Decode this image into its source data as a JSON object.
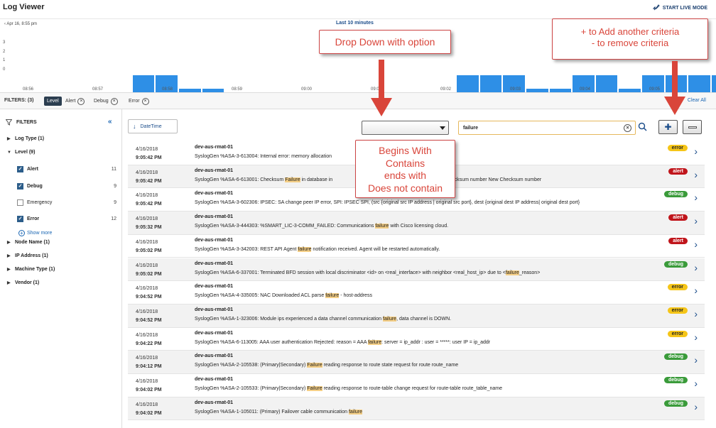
{
  "app": {
    "title": "Log Viewer",
    "live_mode": "START LIVE MODE"
  },
  "histogram": {
    "date_label": "Apr 16, 8:55 pm",
    "range_label": "Last 10 minutes",
    "y_ticks": [
      "3",
      "2",
      "1",
      "0"
    ],
    "x_ticks": [
      "08:56",
      "08:57",
      "08:58",
      "08:59",
      "09:00",
      "09:01",
      "09:02",
      "09:03",
      "09:04",
      "09:05"
    ],
    "bar_color": "#2e8fe6",
    "bars": [
      0,
      0,
      0,
      2,
      2,
      1,
      1,
      0,
      0,
      0,
      0,
      0,
      0,
      0,
      0,
      0,
      0,
      2,
      2,
      2,
      1,
      1,
      2,
      2,
      1,
      2,
      2,
      2,
      2,
      2,
      1
    ]
  },
  "filters_bar": {
    "label": "FILTERS: (3)",
    "chips": [
      {
        "label": "Level",
        "kind": "level"
      },
      {
        "label": "Alert"
      },
      {
        "label": "Debug"
      },
      {
        "label": "Error"
      }
    ],
    "clear_all": "Clear All"
  },
  "sidebar": {
    "title": "FILTERS",
    "collapse_icon": "«",
    "groups": [
      {
        "label": "Log Type (1)",
        "expanded": false
      },
      {
        "label": "Level (9)",
        "expanded": true
      }
    ],
    "level_items": [
      {
        "label": "Alert",
        "count": "11",
        "checked": true
      },
      {
        "label": "Debug",
        "count": "9",
        "checked": true
      },
      {
        "label": "Emergency",
        "count": "9",
        "checked": false
      },
      {
        "label": "Error",
        "count": "12",
        "checked": true
      }
    ],
    "show_more": "Show more",
    "more_groups": [
      {
        "label": "Node Name (1)"
      },
      {
        "label": "IP Address (1)"
      },
      {
        "label": "Machine Type (1)"
      },
      {
        "label": "Vendor (1)"
      }
    ]
  },
  "toolbar": {
    "sort_label": "DateTime",
    "dropdown_value": "",
    "search_value": "failure"
  },
  "logs": [
    {
      "date": "4/16/2018",
      "time": "9:05:42 PM",
      "host": "dev-aus-rmat-01",
      "pre": "SyslogGen %ASA-3-613004: Internal error: memory allocation",
      "hl": "",
      "post": "",
      "level": "error"
    },
    {
      "date": "4/16/2018",
      "time": "9:05:42 PM",
      "host": "dev-aus-rmat-01",
      "pre": "SyslogGen %ASA-6-613001: Checksum ",
      "hl": "Failure",
      "post": " in database in",
      "post2": "Old Checksum number New Checksum number",
      "level": "alert"
    },
    {
      "date": "4/16/2018",
      "time": "9:05:42 PM",
      "host": "dev-aus-rmat-01",
      "pre": "SyslogGen %ASA-3-602306: IPSEC: SA change peer IP error, SPI: IPSEC SPI, (src {original src IP address | original src port}, dest {original dest IP address| original dest port}",
      "hl": "",
      "post": "",
      "level": "debug"
    },
    {
      "date": "4/16/2018",
      "time": "9:05:32 PM",
      "host": "dev-aus-rmat-01",
      "pre": "SyslogGen %ASA-3-444303: %SMART_LIC-3-COMM_FAILED: Communications ",
      "hl": "failure",
      "post": " with Cisco licensing cloud.",
      "level": "alert"
    },
    {
      "date": "4/16/2018",
      "time": "9:05:02 PM",
      "host": "dev-aus-rmat-01",
      "pre": "SyslogGen %ASA-3-342003: REST API Agent ",
      "hl": "failure",
      "post": " notification received. Agent will be restarted automatically.",
      "level": "alert"
    },
    {
      "date": "4/16/2018",
      "time": "9:05:02 PM",
      "host": "dev-aus-rmat-01",
      "pre": "SyslogGen %ASA-6-337001: Terminated BFD session with local discriminator <id> on <real_interface> with neighbor <real_host_ip> due to <",
      "hl": "failure",
      "post": "_reason>",
      "level": "debug"
    },
    {
      "date": "4/16/2018",
      "time": "9:04:52 PM",
      "host": "dev-aus-rmat-01",
      "pre": "SyslogGen %ASA-4-335005: NAC Downloaded ACL parse ",
      "hl": "failure",
      "post": " - host-address",
      "level": "error"
    },
    {
      "date": "4/16/2018",
      "time": "9:04:52 PM",
      "host": "dev-aus-rmat-01",
      "pre": "SyslogGen %ASA-1-323006: Module ips experienced a data channel communication ",
      "hl": "failure",
      "post": ", data channel is DOWN.",
      "level": "error"
    },
    {
      "date": "4/16/2018",
      "time": "9:04:22 PM",
      "host": "dev-aus-rmat-01",
      "pre": "SyslogGen %ASA-6-113005: AAA user authentication Rejected: reason = AAA ",
      "hl": "failure",
      "post": ": server = ip_addr : user = *****: user IP = ip_addr",
      "level": "error"
    },
    {
      "date": "4/16/2018",
      "time": "9:04:12 PM",
      "host": "dev-aus-rmat-01",
      "pre": "SyslogGen %ASA-2-105538: (Primary|Secondary) ",
      "hl": "Failure",
      "post": " reading response to route state request for route route_name",
      "level": "debug"
    },
    {
      "date": "4/16/2018",
      "time": "9:04:02 PM",
      "host": "dev-aus-rmat-01",
      "pre": "SyslogGen %ASA-2-105533: (Primary|Secondary) ",
      "hl": "Failure",
      "post": " reading response to route-table change request for route-table route_table_name",
      "level": "debug"
    },
    {
      "date": "4/16/2018",
      "time": "9:04:02 PM",
      "host": "dev-aus-rmat-01",
      "pre": "SyslogGen %ASA-1-105011: (Primary) Failover cable communication ",
      "hl": "failure",
      "post": "",
      "level": "debug"
    }
  ],
  "callouts": {
    "dropdown": "Drop Down with option",
    "add_remove": [
      "+ to Add another criteria",
      "- to remove criteria"
    ],
    "options": [
      "Begins With",
      "Contains",
      "ends with",
      "Does not contain"
    ]
  },
  "colors": {
    "error": "#f5c518",
    "alert": "#c0151b",
    "debug": "#3a9b3a",
    "accent": "#1a4c8a",
    "highlight": "#f5cf86",
    "callout": "#d9453a"
  }
}
